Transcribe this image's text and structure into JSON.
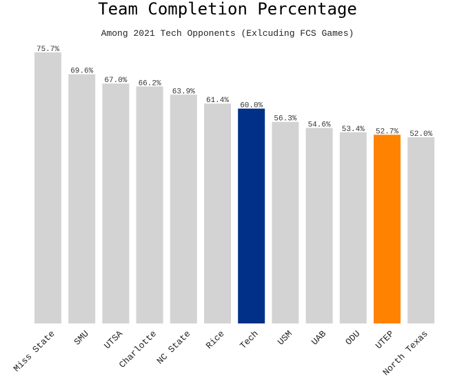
{
  "chart_data": {
    "type": "bar",
    "title": "Team Completion Percentage",
    "subtitle": "Among 2021 Tech Opponents (Exlcuding FCS Games)",
    "categories": [
      "Miss State",
      "SMU",
      "UTSA",
      "Charlotte",
      "NC State",
      "Rice",
      "Tech",
      "USM",
      "UAB",
      "ODU",
      "UTEP",
      "North Texas"
    ],
    "values": [
      75.7,
      69.6,
      67.0,
      66.2,
      63.9,
      61.4,
      60.0,
      56.3,
      54.6,
      53.4,
      52.7,
      52.0
    ],
    "value_labels": [
      "75.7%",
      "69.6%",
      "67.0%",
      "66.2%",
      "63.9%",
      "61.4%",
      "60.0%",
      "56.3%",
      "54.6%",
      "53.4%",
      "52.7%",
      "52.0%"
    ],
    "ylim": [
      0,
      75.7
    ],
    "colors": {
      "default": "#d3d3d3",
      "Tech": "#003087",
      "UTEP": "#ff8200"
    },
    "grid": false,
    "xlabel": "",
    "ylabel": ""
  }
}
